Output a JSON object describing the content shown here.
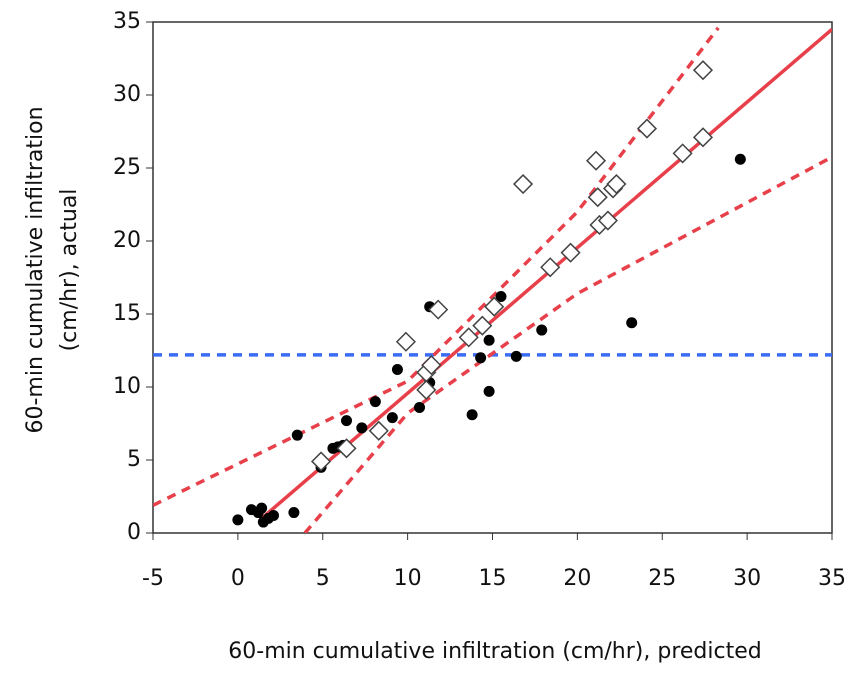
{
  "chart_data": {
    "type": "scatter",
    "xlabel": "60-min cumulative infiltration (cm/hr), predicted",
    "ylabel": [
      "60-min cumulative infiltration",
      "(cm/hr), actual"
    ],
    "xlim": [
      -5,
      35
    ],
    "ylim": [
      0,
      35
    ],
    "xticks": [
      -5,
      0,
      5,
      10,
      15,
      20,
      25,
      30,
      35
    ],
    "yticks": [
      0,
      5,
      10,
      15,
      20,
      25,
      30,
      35
    ],
    "series": [
      {
        "marker": "circle",
        "color": "#000000",
        "x": [
          0,
          0.8,
          1.2,
          1.4,
          1.5,
          1.8,
          2.1,
          3.3,
          3.5,
          4.9,
          5.6,
          5.9,
          6.2,
          6.4,
          7.3,
          8.1,
          9.1,
          9.4,
          10.7,
          11.3,
          11.3,
          13.8,
          14.3,
          14.8,
          14.8,
          15.5,
          16.4,
          17.9,
          23.2,
          29.6
        ],
        "values": [
          0.9,
          1.6,
          1.4,
          1.7,
          0.75,
          1.0,
          1.2,
          1.4,
          6.7,
          4.5,
          5.8,
          5.9,
          6.0,
          7.7,
          7.2,
          9.0,
          7.9,
          11.2,
          8.6,
          15.5,
          10.3,
          8.1,
          12.0,
          9.7,
          13.2,
          16.2,
          12.1,
          13.9,
          14.4,
          25.6
        ]
      },
      {
        "marker": "diamond",
        "color": "#444444",
        "x": [
          4.9,
          6.4,
          8.3,
          9.9,
          11.1,
          11.1,
          11.4,
          11.8,
          13.6,
          14.4,
          15.1,
          16.8,
          18.4,
          19.6,
          21.1,
          21.2,
          21.3,
          21.8,
          22.1,
          22.3,
          24.1,
          26.2,
          27.4,
          27.4
        ],
        "values": [
          4.9,
          5.8,
          7.0,
          13.1,
          11.0,
          9.8,
          11.5,
          15.3,
          13.4,
          14.2,
          15.5,
          23.9,
          18.2,
          19.2,
          25.5,
          23.0,
          21.1,
          21.4,
          23.6,
          23.9,
          27.7,
          26.0,
          27.1,
          31.7
        ]
      }
    ],
    "lines": [
      {
        "color": "#e8404a",
        "style": "solid",
        "x": [
          1.4,
          35
        ],
        "values": [
          1.0,
          34.5
        ]
      },
      {
        "color": "#e8404a",
        "style": "dashed",
        "x": [
          -5,
          10,
          20,
          28.3
        ],
        "values": [
          1.9,
          10.4,
          22.0,
          34.6
        ]
      },
      {
        "color": "#e8404a",
        "style": "dashed",
        "x": [
          3.95,
          10,
          20,
          35
        ],
        "values": [
          0,
          8.2,
          16.4,
          25.75
        ]
      }
    ],
    "hline": {
      "value": 12.2,
      "color": "#3b6cf5",
      "style": "dashed"
    }
  }
}
